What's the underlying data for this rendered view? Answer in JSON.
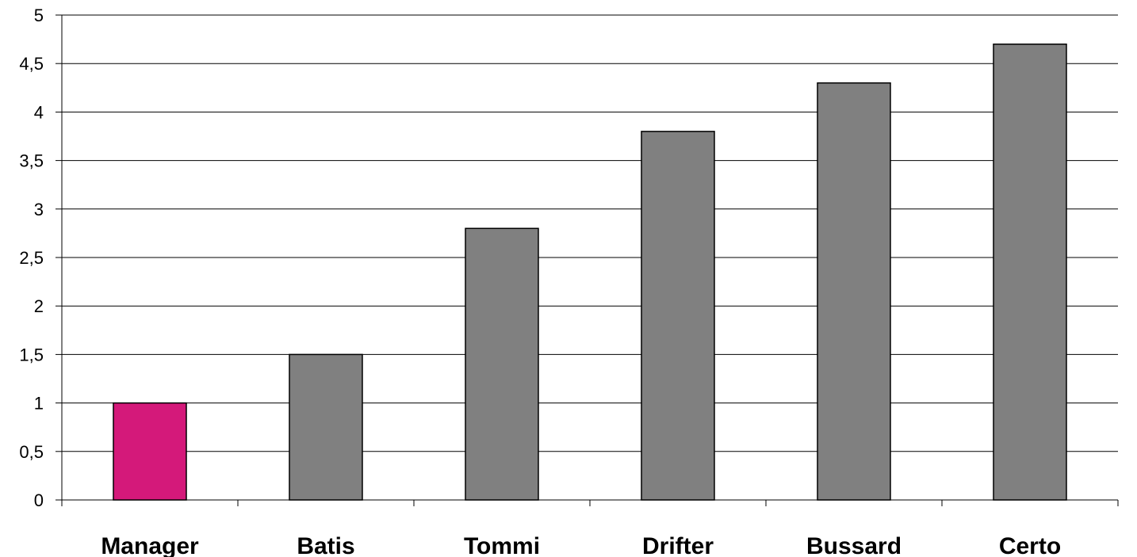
{
  "chart_data": {
    "type": "bar",
    "title": "",
    "xlabel": "",
    "ylabel": "",
    "categories": [
      "Manager",
      "Batis",
      "Tommi",
      "Drifter",
      "Bussard",
      "Certo"
    ],
    "values": [
      1,
      1.5,
      2.8,
      3.8,
      4.3,
      4.7
    ],
    "ylim": [
      0,
      5
    ],
    "yticks": [
      0,
      0.5,
      1,
      1.5,
      2,
      2.5,
      3,
      3.5,
      4,
      4.5,
      5
    ],
    "ytick_labels": [
      "0",
      "0,5",
      "1",
      "1,5",
      "2",
      "2,5",
      "3",
      "3,5",
      "4",
      "4,5",
      "5"
    ],
    "grid": true,
    "legend": "none",
    "colors": {
      "highlight": "#d4197a",
      "default": "#808080"
    },
    "highlight_index": 0
  }
}
